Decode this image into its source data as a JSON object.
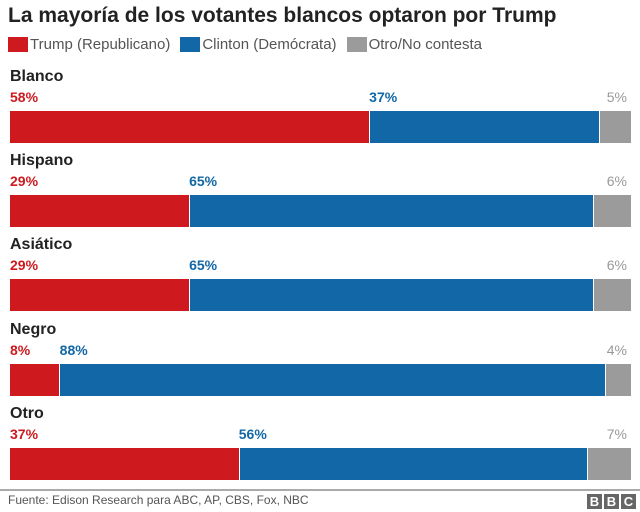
{
  "chart_data": {
    "type": "bar",
    "stacked": true,
    "orientation": "horizontal",
    "title": "La mayoría de los votantes blancos optaron por Trump",
    "categories": [
      "Blanco",
      "Hispano",
      "Asiático",
      "Negro",
      "Otro"
    ],
    "series": [
      {
        "name": "Trump (Republicano)",
        "color": "#ce1a1f",
        "values": [
          58,
          29,
          29,
          8,
          37
        ]
      },
      {
        "name": "Clinton (Demócrata)",
        "color": "#1268a6",
        "values": [
          37,
          65,
          65,
          88,
          56
        ]
      },
      {
        "name": "Otro/No contesta",
        "color": "#9b9b9b",
        "values": [
          5,
          6,
          6,
          4,
          7
        ]
      }
    ],
    "unit": "%",
    "xlim": [
      0,
      100
    ],
    "legend": "top"
  },
  "footer": {
    "source": "Fuente: Edison Research para ABC, AP, CBS, Fox, NBC",
    "logo": [
      "B",
      "B",
      "C"
    ]
  }
}
